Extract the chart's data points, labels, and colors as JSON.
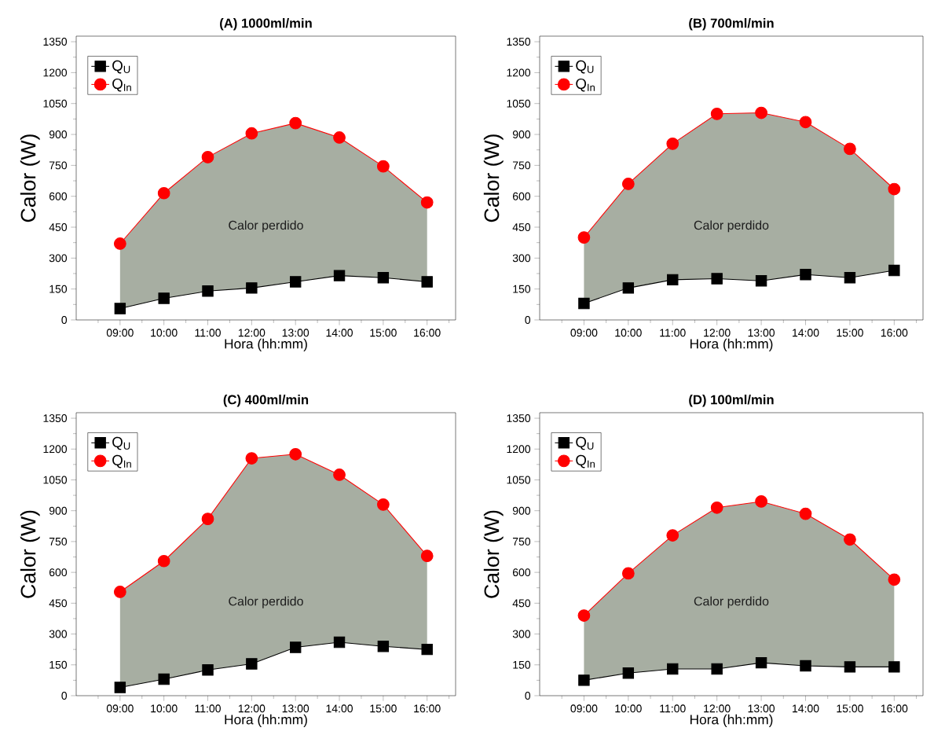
{
  "chart_data": [
    {
      "type": "line",
      "title": "(A) 1000ml/min",
      "xlabel": "Hora (hh:mm)",
      "ylabel": "Calor (W)",
      "categories": [
        "09:00",
        "10:00",
        "11:00",
        "12:00",
        "13:00",
        "14:00",
        "15:00",
        "16:00"
      ],
      "ylim": [
        0,
        1350
      ],
      "yticks": [
        0,
        150,
        300,
        450,
        600,
        750,
        900,
        1050,
        1200,
        1350
      ],
      "legend": "top left",
      "annotations": [
        "Calor perdido"
      ],
      "series": [
        {
          "name": "Q$_{U}$",
          "color": "#000000",
          "marker": "square",
          "values": [
            55,
            105,
            140,
            155,
            185,
            215,
            205,
            185
          ]
        },
        {
          "name": "Q$_{In}$",
          "color": "#ff0000",
          "marker": "circle",
          "values": [
            370,
            615,
            790,
            905,
            955,
            885,
            745,
            570
          ],
          "lower": [
            55,
            105,
            140,
            155,
            185,
            215,
            205,
            185
          ],
          "upper": [
            370,
            615,
            790,
            905,
            955,
            885,
            745,
            570
          ]
        }
      ]
    },
    {
      "type": "line",
      "title": "(B) 700ml/min",
      "xlabel": "Hora (hh:mm)",
      "ylabel": "Calor (W)",
      "categories": [
        "09:00",
        "10:00",
        "11:00",
        "12:00",
        "13:00",
        "14:00",
        "15:00",
        "16:00"
      ],
      "ylim": [
        0,
        1350
      ],
      "yticks": [
        0,
        150,
        300,
        450,
        600,
        750,
        900,
        1050,
        1200,
        1350
      ],
      "legend": "top left",
      "annotations": [
        "Calor perdido"
      ],
      "series": [
        {
          "name": "Q$_{U}$",
          "color": "#000000",
          "marker": "square",
          "values": [
            80,
            155,
            195,
            200,
            190,
            220,
            205,
            240
          ]
        },
        {
          "name": "Q$_{In}$",
          "color": "#ff0000",
          "marker": "circle",
          "values": [
            400,
            660,
            855,
            1000,
            1005,
            960,
            830,
            635
          ],
          "lower": [
            80,
            155,
            195,
            200,
            190,
            220,
            205,
            240
          ],
          "upper": [
            400,
            660,
            855,
            1000,
            1005,
            960,
            830,
            635
          ]
        }
      ]
    },
    {
      "type": "line",
      "title": "(C) 400ml/min",
      "xlabel": "Hora (hh:mm)",
      "ylabel": "Calor (W)",
      "categories": [
        "09:00",
        "10:00",
        "11:00",
        "12:00",
        "13:00",
        "14:00",
        "15:00",
        "16:00"
      ],
      "ylim": [
        0,
        1350
      ],
      "yticks": [
        0,
        150,
        300,
        450,
        600,
        750,
        900,
        1050,
        1200,
        1350
      ],
      "legend": "top left",
      "annotations": [
        "Calor perdido"
      ],
      "series": [
        {
          "name": "Q$_{U}$",
          "color": "#000000",
          "marker": "square",
          "values": [
            40,
            80,
            125,
            155,
            235,
            260,
            240,
            225
          ]
        },
        {
          "name": "Q$_{In}$",
          "color": "#ff0000",
          "marker": "circle",
          "values": [
            505,
            655,
            860,
            1155,
            1175,
            1075,
            930,
            680
          ],
          "lower": [
            40,
            80,
            125,
            155,
            235,
            260,
            240,
            225
          ],
          "upper": [
            505,
            655,
            860,
            1155,
            1175,
            1075,
            930,
            680
          ]
        }
      ]
    },
    {
      "type": "line",
      "title": "(D) 100ml/min",
      "xlabel": "Hora (hh:mm)",
      "ylabel": "Calor (W)",
      "categories": [
        "09:00",
        "10:00",
        "11:00",
        "12:00",
        "13:00",
        "14:00",
        "15:00",
        "16:00"
      ],
      "ylim": [
        0,
        1350
      ],
      "yticks": [
        0,
        150,
        300,
        450,
        600,
        750,
        900,
        1050,
        1200,
        1350
      ],
      "legend": "top left",
      "annotations": [
        "Calor perdido"
      ],
      "series": [
        {
          "name": "Q$_{U}$",
          "color": "#000000",
          "marker": "square",
          "values": [
            75,
            110,
            130,
            130,
            160,
            145,
            140,
            140
          ]
        },
        {
          "name": "Q$_{In}$",
          "color": "#ff0000",
          "marker": "circle",
          "values": [
            390,
            595,
            780,
            915,
            945,
            885,
            760,
            565
          ],
          "lower": [
            75,
            110,
            130,
            130,
            160,
            145,
            140,
            140
          ],
          "upper": [
            390,
            595,
            780,
            915,
            945,
            885,
            760,
            565
          ]
        }
      ]
    }
  ]
}
